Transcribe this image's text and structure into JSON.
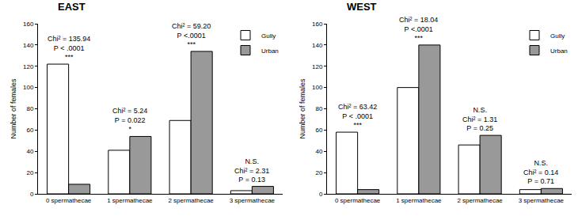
{
  "chart_data": [
    {
      "type": "bar",
      "title": "EAST",
      "categories": [
        "0 spermathecae",
        "1 spermathecae",
        "2 spermathecae",
        "3 spermathecae"
      ],
      "series": [
        {
          "name": "Gully",
          "color": "#ffffff",
          "values": [
            122,
            41,
            69,
            3
          ]
        },
        {
          "name": "Urban",
          "color": "#999999",
          "values": [
            9,
            54,
            134,
            7
          ]
        }
      ],
      "ylabel": "Number of females",
      "ylim": [
        0,
        160
      ],
      "yticks": [
        0,
        20,
        40,
        60,
        80,
        100,
        120,
        140,
        160
      ],
      "grid": false,
      "legend": "top right",
      "annotations": [
        {
          "category": "0 spermathecae",
          "text": [
            "Chi² = 135.94",
            "P < .0001",
            "***"
          ]
        },
        {
          "category": "1 spermathecae",
          "text": [
            "Chi² = 5.24",
            "P = 0.022",
            "*"
          ]
        },
        {
          "category": "2 spermathecae",
          "text": [
            "Chi² = 59.20",
            "P <.0001",
            "***"
          ]
        },
        {
          "category": "3 spermathecae",
          "text": [
            "N.S.",
            "Chi² = 2.31",
            "P = 0.13"
          ]
        }
      ]
    },
    {
      "type": "bar",
      "title": "WEST",
      "categories": [
        "0 spermathecae",
        "1 spermathecae",
        "2 spermathecae",
        "3 spermathecae"
      ],
      "series": [
        {
          "name": "Gully",
          "color": "#ffffff",
          "values": [
            58,
            100,
            46,
            4
          ]
        },
        {
          "name": "Urban",
          "color": "#999999",
          "values": [
            4,
            140,
            55,
            5
          ]
        }
      ],
      "ylabel": "Number of females",
      "ylim": [
        0,
        160
      ],
      "yticks": [
        0,
        20,
        40,
        60,
        80,
        100,
        120,
        140,
        160
      ],
      "grid": false,
      "legend": "top right",
      "annotations": [
        {
          "category": "0 spermathecae",
          "text": [
            "Chi² = 63.42",
            "P < .0001",
            "***"
          ]
        },
        {
          "category": "1 spermathecae",
          "text": [
            "Chi² = 18.04",
            "P <.0001",
            "***"
          ]
        },
        {
          "category": "2 spermathecae",
          "text": [
            "N.S.",
            "Chi² = 1.31",
            "P = 0.25"
          ]
        },
        {
          "category": "3 spermathecae",
          "text": [
            "N.S.",
            "Chi² = 0.14",
            "P = 0.71"
          ]
        }
      ]
    }
  ]
}
